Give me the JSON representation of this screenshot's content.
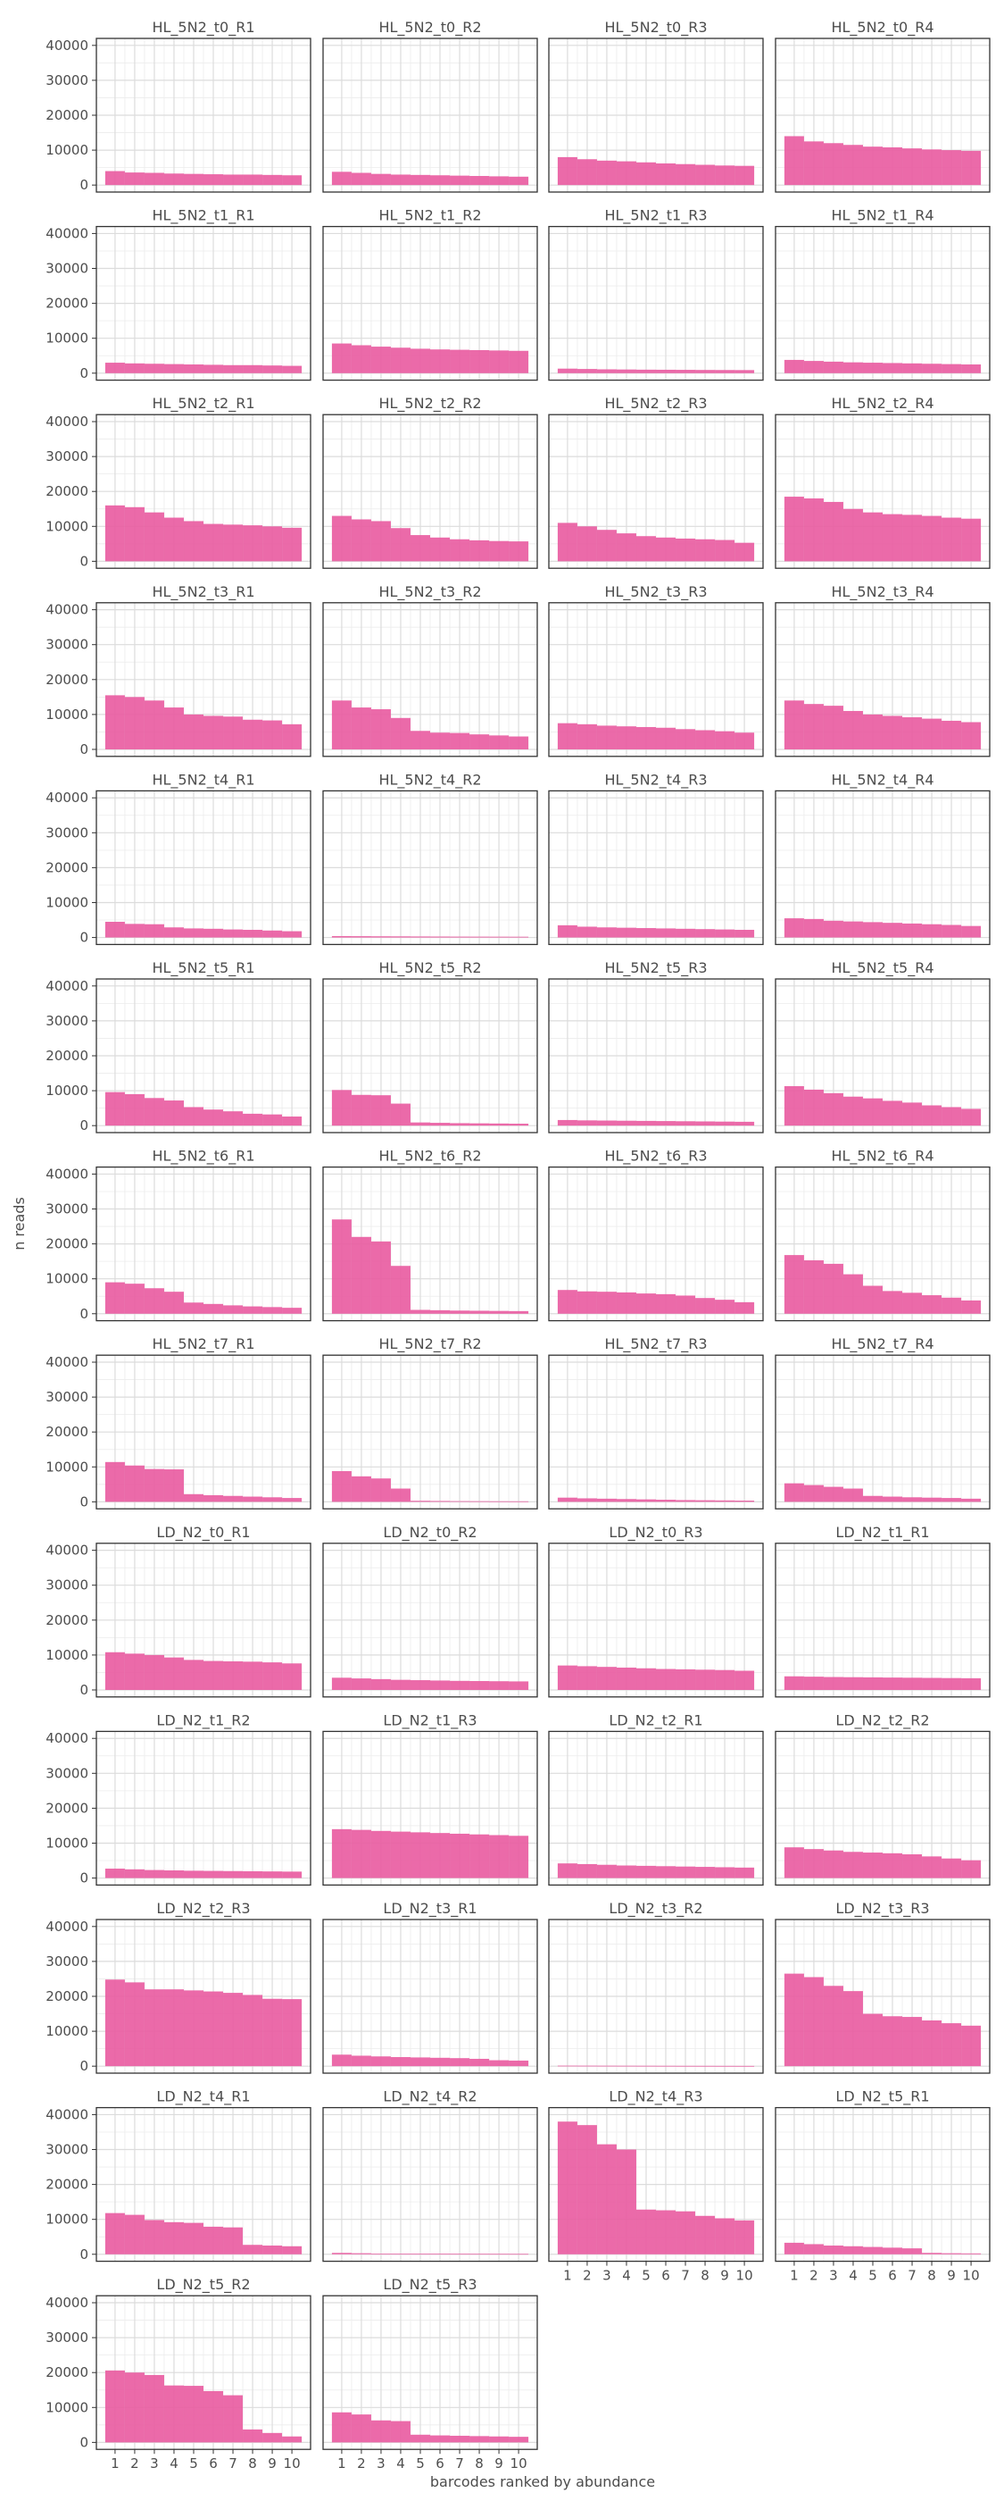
{
  "chart_data": {
    "type": "bar",
    "xlabel": "barcodes ranked by abundance",
    "ylabel": "n reads",
    "ylim": [
      0,
      40000
    ],
    "y_ticks": [
      "0",
      "10000",
      "20000",
      "30000",
      "40000"
    ],
    "x_ticks": [
      "1",
      "2",
      "3",
      "4",
      "5",
      "6",
      "7",
      "8",
      "9",
      "10"
    ],
    "grid": true,
    "bar_color": "#e95aa0",
    "panels": [
      {
        "title": "HL_5N2_t0_R1",
        "values": [
          4000,
          3600,
          3500,
          3300,
          3200,
          3100,
          3000,
          3000,
          2900,
          2800
        ]
      },
      {
        "title": "HL_5N2_t0_R2",
        "values": [
          3800,
          3500,
          3200,
          3000,
          2900,
          2800,
          2700,
          2600,
          2500,
          2400
        ]
      },
      {
        "title": "HL_5N2_t0_R3",
        "values": [
          8000,
          7400,
          7000,
          6800,
          6500,
          6200,
          6000,
          5800,
          5600,
          5500
        ]
      },
      {
        "title": "HL_5N2_t0_R4",
        "values": [
          14000,
          12500,
          12000,
          11500,
          11000,
          10800,
          10500,
          10200,
          10000,
          9800
        ]
      },
      {
        "title": "HL_5N2_t1_R1",
        "values": [
          3000,
          2800,
          2700,
          2600,
          2500,
          2400,
          2300,
          2300,
          2200,
          2100
        ]
      },
      {
        "title": "HL_5N2_t1_R2",
        "values": [
          8500,
          8000,
          7600,
          7300,
          7000,
          6800,
          6700,
          6600,
          6500,
          6400
        ]
      },
      {
        "title": "HL_5N2_t1_R3",
        "values": [
          1300,
          1200,
          1100,
          1050,
          1000,
          980,
          950,
          920,
          900,
          880
        ]
      },
      {
        "title": "HL_5N2_t1_R4",
        "values": [
          3800,
          3500,
          3300,
          3100,
          3000,
          2900,
          2800,
          2700,
          2600,
          2500
        ]
      },
      {
        "title": "HL_5N2_t2_R1",
        "values": [
          16000,
          15500,
          14000,
          12500,
          11500,
          10700,
          10500,
          10300,
          10000,
          9600
        ]
      },
      {
        "title": "HL_5N2_t2_R2",
        "values": [
          13000,
          12000,
          11500,
          9500,
          7500,
          6800,
          6300,
          6000,
          5800,
          5700
        ]
      },
      {
        "title": "HL_5N2_t2_R3",
        "values": [
          11000,
          10000,
          9000,
          8000,
          7200,
          6800,
          6500,
          6300,
          6100,
          5300
        ]
      },
      {
        "title": "HL_5N2_t2_R4",
        "values": [
          18500,
          18000,
          17000,
          15000,
          14000,
          13500,
          13300,
          13000,
          12500,
          12200
        ]
      },
      {
        "title": "HL_5N2_t3_R1",
        "values": [
          15500,
          15000,
          14000,
          12000,
          10000,
          9600,
          9400,
          8500,
          8300,
          7200
        ]
      },
      {
        "title": "HL_5N2_t3_R2",
        "values": [
          14000,
          12000,
          11500,
          9000,
          5300,
          4800,
          4700,
          4300,
          4000,
          3700
        ]
      },
      {
        "title": "HL_5N2_t3_R3",
        "values": [
          7500,
          7200,
          6800,
          6600,
          6400,
          6200,
          5800,
          5500,
          5200,
          4800
        ]
      },
      {
        "title": "HL_5N2_t3_R4",
        "values": [
          14000,
          13000,
          12500,
          11000,
          10000,
          9600,
          9200,
          8800,
          8200,
          7800
        ]
      },
      {
        "title": "HL_5N2_t4_R1",
        "values": [
          4500,
          3900,
          3800,
          2900,
          2600,
          2500,
          2300,
          2200,
          2000,
          1800
        ]
      },
      {
        "title": "HL_5N2_t4_R2",
        "values": [
          400,
          380,
          350,
          330,
          300,
          280,
          260,
          250,
          240,
          230
        ]
      },
      {
        "title": "HL_5N2_t4_R3",
        "values": [
          3500,
          3100,
          2900,
          2800,
          2700,
          2600,
          2500,
          2400,
          2300,
          2200
        ]
      },
      {
        "title": "HL_5N2_t4_R4",
        "values": [
          5500,
          5300,
          4800,
          4600,
          4400,
          4200,
          4000,
          3800,
          3600,
          3300
        ]
      },
      {
        "title": "HL_5N2_t5_R1",
        "values": [
          9600,
          9000,
          7900,
          7200,
          5300,
          4600,
          4100,
          3400,
          3200,
          2600
        ]
      },
      {
        "title": "HL_5N2_t5_R2",
        "values": [
          10200,
          8800,
          8700,
          6300,
          900,
          800,
          700,
          650,
          600,
          550
        ]
      },
      {
        "title": "HL_5N2_t5_R3",
        "values": [
          1600,
          1500,
          1450,
          1400,
          1350,
          1300,
          1250,
          1200,
          1150,
          1100
        ]
      },
      {
        "title": "HL_5N2_t5_R4",
        "values": [
          11300,
          10300,
          9300,
          8300,
          7800,
          7100,
          6600,
          5800,
          5300,
          4800
        ]
      },
      {
        "title": "HL_5N2_t6_R1",
        "values": [
          9000,
          8600,
          7300,
          6300,
          3200,
          2800,
          2400,
          2100,
          1900,
          1700
        ]
      },
      {
        "title": "HL_5N2_t6_R2",
        "values": [
          27000,
          22000,
          20700,
          13700,
          1100,
          1000,
          900,
          850,
          800,
          750
        ]
      },
      {
        "title": "HL_5N2_t6_R3",
        "values": [
          6800,
          6400,
          6300,
          6100,
          5800,
          5600,
          5200,
          4500,
          4000,
          3300
        ]
      },
      {
        "title": "HL_5N2_t6_R4",
        "values": [
          16800,
          15300,
          14300,
          11300,
          8000,
          6500,
          6000,
          5300,
          4600,
          3800
        ]
      },
      {
        "title": "HL_5N2_t7_R1",
        "values": [
          11400,
          10400,
          9400,
          9300,
          2200,
          1900,
          1700,
          1500,
          1300,
          1100
        ]
      },
      {
        "title": "HL_5N2_t7_R2",
        "values": [
          8800,
          7300,
          6700,
          3800,
          300,
          250,
          200,
          180,
          160,
          150
        ]
      },
      {
        "title": "HL_5N2_t7_R3",
        "values": [
          1200,
          1000,
          900,
          800,
          700,
          600,
          500,
          450,
          400,
          350
        ]
      },
      {
        "title": "HL_5N2_t7_R4",
        "values": [
          5300,
          4800,
          4300,
          3800,
          1700,
          1500,
          1300,
          1200,
          1100,
          900
        ]
      },
      {
        "title": "LD_N2_t0_R1",
        "values": [
          10800,
          10400,
          10000,
          9300,
          8600,
          8300,
          8200,
          8100,
          7900,
          7600
        ]
      },
      {
        "title": "LD_N2_t0_R2",
        "values": [
          3500,
          3300,
          3100,
          2900,
          2800,
          2700,
          2600,
          2550,
          2500,
          2450
        ]
      },
      {
        "title": "LD_N2_t0_R3",
        "values": [
          7000,
          6800,
          6600,
          6400,
          6200,
          6000,
          5900,
          5800,
          5700,
          5500
        ]
      },
      {
        "title": "LD_N2_t1_R1",
        "values": [
          3900,
          3800,
          3700,
          3650,
          3600,
          3550,
          3500,
          3450,
          3400,
          3350
        ]
      },
      {
        "title": "LD_N2_t1_R2",
        "values": [
          2700,
          2500,
          2300,
          2200,
          2100,
          2050,
          2000,
          1950,
          1900,
          1850
        ]
      },
      {
        "title": "LD_N2_t1_R3",
        "values": [
          14000,
          13800,
          13500,
          13300,
          13100,
          12900,
          12700,
          12500,
          12300,
          12100
        ]
      },
      {
        "title": "LD_N2_t2_R1",
        "values": [
          4200,
          4000,
          3800,
          3600,
          3500,
          3400,
          3300,
          3200,
          3100,
          3000
        ]
      },
      {
        "title": "LD_N2_t2_R2",
        "values": [
          8800,
          8300,
          7900,
          7500,
          7300,
          7100,
          6800,
          6200,
          5600,
          5100
        ]
      },
      {
        "title": "LD_N2_t2_R3",
        "values": [
          24800,
          24000,
          22000,
          22000,
          21700,
          21400,
          21000,
          20400,
          19300,
          19200
        ]
      },
      {
        "title": "LD_N2_t3_R1",
        "values": [
          3300,
          3000,
          2800,
          2600,
          2500,
          2400,
          2300,
          2100,
          1700,
          1600
        ]
      },
      {
        "title": "LD_N2_t3_R2",
        "values": [
          150,
          140,
          130,
          120,
          110,
          100,
          90,
          85,
          80,
          75
        ]
      },
      {
        "title": "LD_N2_t3_R3",
        "values": [
          26500,
          25500,
          23000,
          21500,
          15000,
          14300,
          14100,
          13100,
          12300,
          11600
        ]
      },
      {
        "title": "LD_N2_t4_R1",
        "values": [
          11800,
          11300,
          9800,
          9200,
          9000,
          7900,
          7700,
          2700,
          2500,
          2300
        ]
      },
      {
        "title": "LD_N2_t4_R2",
        "values": [
          400,
          300,
          200,
          180,
          160,
          150,
          140,
          130,
          120,
          110
        ]
      },
      {
        "title": "LD_N2_t4_R3",
        "values": [
          38000,
          37000,
          31500,
          30000,
          12800,
          12600,
          12300,
          11000,
          10300,
          9700
        ]
      },
      {
        "title": "LD_N2_t5_R1",
        "values": [
          3300,
          2900,
          2500,
          2300,
          2100,
          1900,
          1700,
          400,
          300,
          250
        ]
      },
      {
        "title": "LD_N2_t5_R2",
        "values": [
          20600,
          20000,
          19300,
          16300,
          16200,
          14700,
          13500,
          3700,
          2700,
          1700
        ]
      },
      {
        "title": "LD_N2_t5_R3",
        "values": [
          8600,
          8000,
          6300,
          6100,
          2200,
          2000,
          1900,
          1800,
          1700,
          1600
        ]
      }
    ]
  }
}
